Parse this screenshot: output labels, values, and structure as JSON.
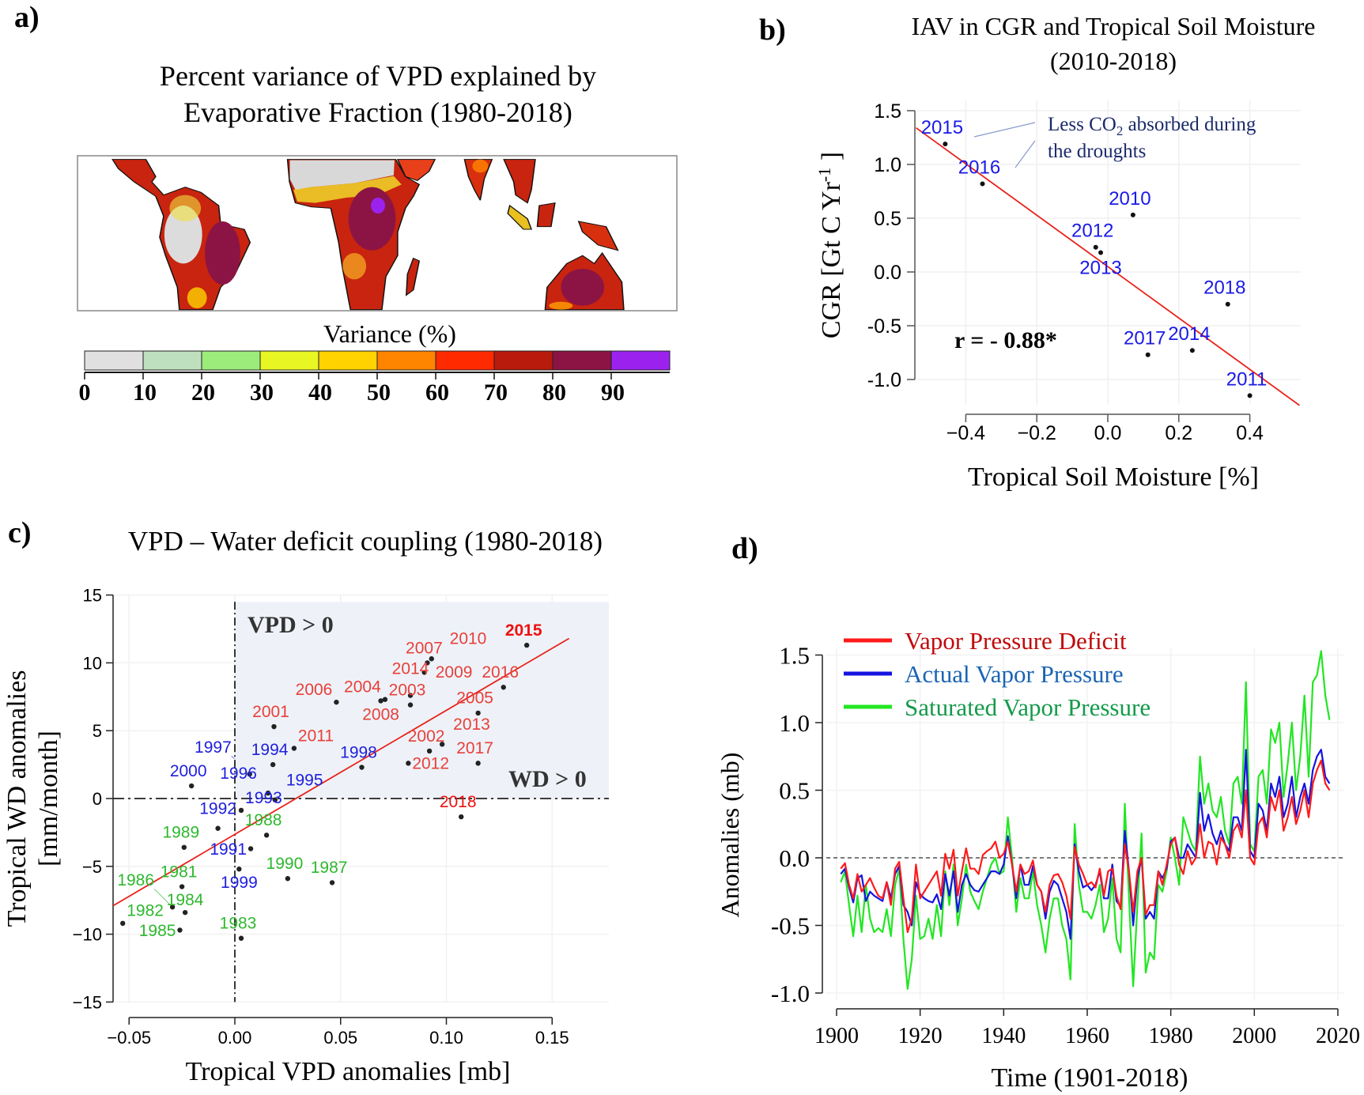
{
  "panel_labels": {
    "a": "a)",
    "b": "b)",
    "c": "c)",
    "d": "d)"
  },
  "panel_a": {
    "title_line1": "Percent variance of  VPD explained by",
    "title_line2": "Evaporative Fraction (1980-2018)",
    "colorbar_label": "Variance (%)",
    "colorbar_ticks": [
      "0",
      "10",
      "20",
      "30",
      "40",
      "50",
      "60",
      "70",
      "80",
      "90"
    ],
    "colorbar_colors": [
      "#e0e0e0",
      "#bfe0bf",
      "#9cec7c",
      "#e8f624",
      "#ffd200",
      "#ff8400",
      "#ff2a00",
      "#b81a0c",
      "#8c1444",
      "#9b22ee"
    ]
  },
  "chart_data": [
    {
      "panel": "b",
      "type": "scatter",
      "title_line1": "IAV in CGR and Tropical Soil Moisture",
      "title_line2": "(2010-2018)",
      "xlabel": "Tropical Soil Moisture [%]",
      "ylabel": "CGR [Gt C Yr-1]",
      "xlim": [
        -0.54,
        0.54
      ],
      "ylim": [
        -1.2,
        1.5
      ],
      "xticks": [
        -0.4,
        -0.2,
        0.0,
        0.2,
        0.4
      ],
      "xtick_labels": [
        "−0.4",
        "−0.2",
        "0.0",
        "0.2",
        "0.4"
      ],
      "yticks": [
        1.5,
        1.0,
        0.5,
        0.0,
        -0.5,
        -1.0
      ],
      "ytick_labels": [
        "1.5",
        "1.0",
        "0.5",
        "0.0",
        "-0.5",
        "-1.0"
      ],
      "grid": true,
      "label_color": "#1a1ae6",
      "fit_color": "#e8231b",
      "fit": {
        "slope": -2.39,
        "intercept": 0.05
      },
      "points": [
        {
          "label": "2015",
          "x": -0.458,
          "y": 1.19
        },
        {
          "label": "2016",
          "x": -0.353,
          "y": 0.82
        },
        {
          "label": "2010",
          "x": 0.071,
          "y": 0.53
        },
        {
          "label": "2012",
          "x": -0.034,
          "y": 0.23
        },
        {
          "label": "2013",
          "x": -0.02,
          "y": 0.18
        },
        {
          "label": "2018",
          "x": 0.338,
          "y": -0.3
        },
        {
          "label": "2017",
          "x": 0.113,
          "y": -0.77
        },
        {
          "label": "2014",
          "x": 0.238,
          "y": -0.73
        },
        {
          "label": "2011",
          "x": 0.4,
          "y": -1.15
        }
      ],
      "annotation_line1": "Less CO",
      "annotation_sub": "2",
      "annotation_line1_rest": " absorbed during",
      "annotation_line2": "the droughts",
      "correlation_text": "r = - 0.88*"
    },
    {
      "panel": "c",
      "type": "scatter",
      "title": "VPD – Water deficit coupling (1980-2018)",
      "xlabel": "Tropical VPD anomalies [mb]",
      "ylabel_line1": "Tropical WD anomalies",
      "ylabel_line2": "[mm/month]",
      "xlim": [
        -0.0575,
        0.175
      ],
      "ylim": [
        -15,
        15
      ],
      "xticks": [
        -0.05,
        0.0,
        0.05,
        0.1,
        0.15
      ],
      "xtick_labels": [
        "−0.05",
        "0.00",
        "0.05",
        "0.10",
        "0.15"
      ],
      "yticks": [
        15,
        10,
        5,
        0,
        -5,
        -10,
        -15
      ],
      "ytick_labels": [
        "15",
        "10",
        "5",
        "0",
        "−5",
        "−10",
        "−15"
      ],
      "grid": true,
      "shaded_quadrant_color": "#eef2f8",
      "fit_color": "#e8231b",
      "fit": {
        "slope": 91.4,
        "intercept": -2.64
      },
      "quadrant_labels": {
        "vpd": "VPD > 0",
        "wd": "WD > 0"
      },
      "group_colors": {
        "1980s": "#2eb82e",
        "1990s": "#2020dd",
        "2000s": "#e8403a",
        "highlight": "#ee1111"
      },
      "points": [
        {
          "label": "1981",
          "x": -0.025,
          "y": -6.5,
          "group": "1980s"
        },
        {
          "label": "1982",
          "x": -0.053,
          "y": -9.2,
          "group": "1980s"
        },
        {
          "label": "1983",
          "x": 0.003,
          "y": -10.3,
          "group": "1980s"
        },
        {
          "label": "1984",
          "x": -0.0235,
          "y": -8.4,
          "group": "1980s"
        },
        {
          "label": "1985",
          "x": -0.026,
          "y": -9.7,
          "group": "1980s"
        },
        {
          "label": "1986",
          "x": -0.0295,
          "y": -8.0,
          "group": "1980s"
        },
        {
          "label": "1987",
          "x": 0.046,
          "y": -6.2,
          "group": "1980s"
        },
        {
          "label": "1988",
          "x": 0.015,
          "y": -2.7,
          "group": "1980s"
        },
        {
          "label": "1989",
          "x": -0.024,
          "y": -3.6,
          "group": "1980s"
        },
        {
          "label": "1990",
          "x": 0.025,
          "y": -5.9,
          "group": "1980s"
        },
        {
          "label": "1991",
          "x": 0.0075,
          "y": -3.7,
          "group": "1990s"
        },
        {
          "label": "1992",
          "x": -0.008,
          "y": -2.2,
          "group": "1990s"
        },
        {
          "label": "1993",
          "x": 0.003,
          "y": -0.87,
          "group": "1990s"
        },
        {
          "label": "1994",
          "x": 0.018,
          "y": 2.5,
          "group": "1990s"
        },
        {
          "label": "1995",
          "x": 0.019,
          "y": -0.1,
          "group": "1990s"
        },
        {
          "label": "1996",
          "x": 0.0157,
          "y": 0.4,
          "group": "1990s"
        },
        {
          "label": "1997",
          "x": 0.007,
          "y": 1.8,
          "group": "1990s"
        },
        {
          "label": "1998",
          "x": 0.06,
          "y": 2.3,
          "group": "1990s"
        },
        {
          "label": "1999",
          "x": 0.002,
          "y": -5.2,
          "group": "1990s"
        },
        {
          "label": "2000",
          "x": -0.0205,
          "y": 0.93,
          "group": "1990s"
        },
        {
          "label": "2001",
          "x": 0.0185,
          "y": 5.3,
          "group": "2000s"
        },
        {
          "label": "2002",
          "x": 0.092,
          "y": 3.5,
          "group": "2000s"
        },
        {
          "label": "2003",
          "x": 0.083,
          "y": 6.9,
          "group": "2000s"
        },
        {
          "label": "2004",
          "x": 0.071,
          "y": 7.3,
          "group": "2000s"
        },
        {
          "label": "2005",
          "x": 0.115,
          "y": 6.3,
          "group": "2000s"
        },
        {
          "label": "2006",
          "x": 0.048,
          "y": 7.1,
          "group": "2000s"
        },
        {
          "label": "2007",
          "x": 0.091,
          "y": 10.0,
          "group": "2000s"
        },
        {
          "label": "2008",
          "x": 0.069,
          "y": 7.2,
          "group": "2000s"
        },
        {
          "label": "2009",
          "x": 0.093,
          "y": 10.3,
          "group": "2000s"
        },
        {
          "label": "2010",
          "x": 0.0896,
          "y": 9.3,
          "group": "2000s"
        },
        {
          "label": "2011",
          "x": 0.028,
          "y": 3.7,
          "group": "2000s"
        },
        {
          "label": "2012",
          "x": 0.082,
          "y": 2.6,
          "group": "2000s"
        },
        {
          "label": "2013",
          "x": 0.098,
          "y": 4.0,
          "group": "2000s"
        },
        {
          "label": "2014",
          "x": 0.083,
          "y": 7.6,
          "group": "2000s"
        },
        {
          "label": "2015",
          "x": 0.138,
          "y": 11.3,
          "group": "highlight",
          "bold": true
        },
        {
          "label": "2016",
          "x": 0.127,
          "y": 8.2,
          "group": "2000s"
        },
        {
          "label": "2017",
          "x": 0.115,
          "y": 2.6,
          "group": "2000s"
        },
        {
          "label": "2018",
          "x": 0.107,
          "y": -1.35,
          "group": "highlight"
        }
      ]
    },
    {
      "panel": "d",
      "type": "line",
      "xlabel": "Time (1901-2018)",
      "ylabel": "Anomalies (mb)",
      "x_range": [
        1901,
        2018
      ],
      "xlim": [
        1900,
        2020
      ],
      "ylim": [
        -1.0,
        1.5
      ],
      "xticks": [
        1900,
        1920,
        1940,
        1960,
        1980,
        2000,
        2020
      ],
      "xtick_labels": [
        "1900",
        "1920",
        "1940",
        "1960",
        "1980",
        "2000",
        "2020"
      ],
      "yticks": [
        1.5,
        1.0,
        0.5,
        0.0,
        -0.5,
        -1.0
      ],
      "ytick_labels": [
        "1.5",
        "1.0",
        "0.5",
        "0.0",
        "-0.5",
        "-1.0"
      ],
      "grid": true,
      "zero_line": true,
      "legend_position": "top-left",
      "series": [
        {
          "name": "Saturated Vapor Pressure",
          "line_color": "#22e622",
          "legend_text_color": "#149a4a",
          "values": [
            -0.18,
            -0.1,
            -0.35,
            -0.58,
            -0.28,
            -0.55,
            -0.2,
            -0.45,
            -0.55,
            -0.52,
            -0.55,
            -0.38,
            -0.58,
            -0.2,
            -0.08,
            -0.6,
            -0.97,
            -0.75,
            -0.28,
            -0.6,
            -0.58,
            -0.45,
            -0.6,
            -0.35,
            -0.58,
            -0.1,
            -0.35,
            -0.05,
            -0.5,
            -0.3,
            -0.05,
            -0.25,
            -0.32,
            -0.38,
            -0.25,
            -0.15,
            -0.05,
            0.0,
            -0.12,
            -0.1,
            0.3,
            0.0,
            -0.4,
            -0.15,
            -0.3,
            -0.3,
            -0.1,
            -0.35,
            -0.5,
            -0.7,
            -0.45,
            -0.3,
            -0.3,
            -0.5,
            -0.6,
            -0.9,
            0.25,
            -0.2,
            -0.4,
            -0.4,
            -0.45,
            -0.35,
            -0.2,
            -0.55,
            -0.45,
            -0.15,
            -0.6,
            -0.7,
            0.4,
            -0.3,
            -0.95,
            -0.35,
            0.18,
            -0.85,
            -0.7,
            -0.75,
            -0.2,
            -0.25,
            -0.1,
            0.15,
            0.0,
            -0.2,
            0.3,
            0.2,
            0.1,
            0.05,
            0.75,
            0.4,
            0.55,
            0.35,
            0.3,
            0.45,
            0.2,
            0.1,
            0.55,
            0.6,
            0.4,
            1.3,
            0.1,
            0.05,
            0.6,
            0.65,
            0.4,
            0.95,
            0.85,
            1.0,
            0.45,
            0.7,
            1.0,
            0.5,
            0.75,
            1.2,
            0.6,
            1.3,
            1.35,
            1.53,
            1.2,
            1.02
          ]
        },
        {
          "name": "Actual Vapor Pressure",
          "line_color": "#1414e0",
          "legend_text_color": "#1a64b4",
          "values": [
            -0.12,
            -0.08,
            -0.22,
            -0.33,
            -0.15,
            -0.13,
            -0.32,
            -0.25,
            -0.28,
            -0.3,
            -0.32,
            -0.18,
            -0.3,
            -0.12,
            -0.06,
            -0.35,
            -0.4,
            -0.5,
            -0.18,
            -0.27,
            -0.3,
            -0.32,
            -0.33,
            -0.27,
            -0.38,
            -0.12,
            -0.28,
            -0.1,
            -0.4,
            -0.2,
            -0.12,
            -0.2,
            -0.24,
            -0.25,
            -0.2,
            -0.15,
            -0.1,
            -0.1,
            -0.12,
            -0.05,
            0.16,
            -0.05,
            -0.3,
            -0.05,
            -0.2,
            -0.2,
            -0.06,
            -0.2,
            -0.25,
            -0.45,
            -0.25,
            -0.17,
            -0.2,
            -0.3,
            -0.4,
            -0.6,
            0.1,
            -0.1,
            -0.22,
            -0.2,
            -0.24,
            -0.2,
            -0.1,
            -0.3,
            -0.3,
            -0.05,
            -0.32,
            -0.36,
            0.2,
            -0.1,
            -0.5,
            -0.15,
            0.0,
            -0.45,
            -0.4,
            -0.45,
            -0.1,
            -0.15,
            -0.08,
            0.12,
            0.15,
            0.0,
            0.0,
            0.1,
            0.05,
            0.0,
            0.48,
            0.2,
            0.32,
            0.18,
            0.1,
            0.2,
            0.1,
            0.05,
            0.3,
            0.3,
            0.2,
            0.8,
            0.05,
            0.0,
            0.4,
            0.35,
            0.2,
            0.55,
            0.45,
            0.6,
            0.3,
            0.4,
            0.6,
            0.3,
            0.45,
            0.55,
            0.4,
            0.65,
            0.75,
            0.8,
            0.6,
            0.55
          ]
        },
        {
          "name": "Vapor Pressure Deficit",
          "line_color": "#ff1a1a",
          "legend_text_color": "#c00a0a",
          "values": [
            -0.08,
            -0.04,
            -0.2,
            -0.3,
            -0.12,
            -0.25,
            -0.2,
            -0.15,
            -0.22,
            -0.28,
            -0.3,
            -0.18,
            -0.35,
            -0.08,
            -0.03,
            -0.3,
            -0.55,
            -0.45,
            -0.05,
            -0.3,
            -0.25,
            -0.2,
            -0.15,
            -0.1,
            -0.28,
            0.03,
            -0.08,
            0.06,
            -0.28,
            -0.1,
            0.07,
            -0.08,
            -0.08,
            -0.12,
            0.02,
            0.05,
            0.07,
            0.12,
            0.0,
            0.03,
            0.12,
            -0.05,
            -0.25,
            -0.05,
            -0.12,
            -0.1,
            -0.02,
            -0.2,
            -0.25,
            -0.4,
            -0.2,
            -0.13,
            -0.12,
            -0.18,
            -0.28,
            -0.45,
            0.08,
            -0.05,
            -0.12,
            -0.2,
            -0.18,
            -0.22,
            -0.08,
            -0.28,
            -0.1,
            -0.08,
            -0.28,
            -0.38,
            0.1,
            -0.1,
            -0.4,
            -0.1,
            0.0,
            -0.42,
            -0.35,
            -0.35,
            -0.1,
            -0.2,
            -0.05,
            0.1,
            0.15,
            -0.05,
            -0.12,
            0.05,
            -0.05,
            0.0,
            0.25,
            0.0,
            0.12,
            0.1,
            -0.05,
            0.15,
            0.1,
            0.0,
            0.2,
            0.25,
            0.15,
            0.5,
            0.0,
            -0.05,
            0.25,
            0.3,
            0.15,
            0.45,
            0.35,
            0.5,
            0.2,
            0.3,
            0.45,
            0.25,
            0.35,
            0.5,
            0.3,
            0.55,
            0.65,
            0.72,
            0.55,
            0.5
          ]
        }
      ],
      "legend_order": [
        "Vapor Pressure Deficit",
        "Actual Vapor Pressure",
        "Saturated Vapor Pressure"
      ]
    }
  ]
}
